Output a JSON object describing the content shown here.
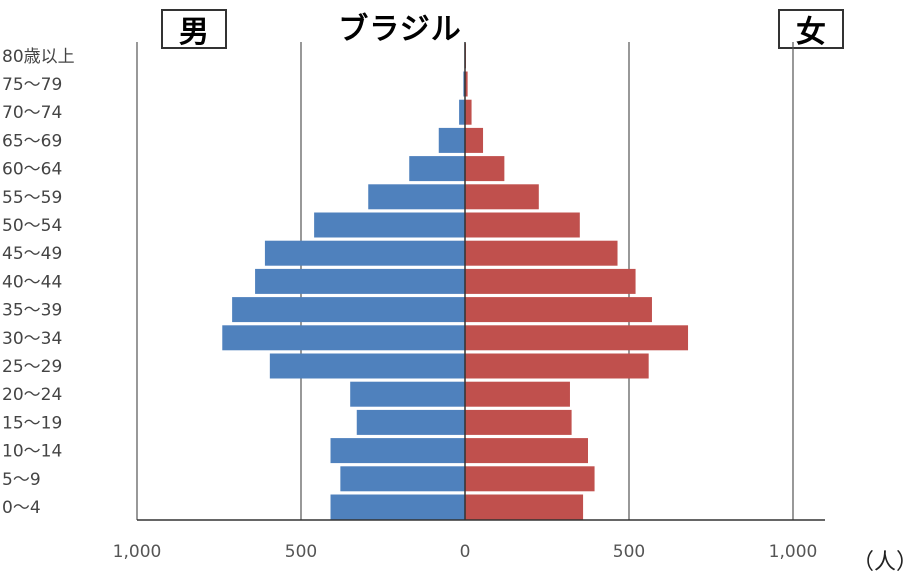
{
  "chart_data": {
    "type": "bar",
    "title": "ブラジル",
    "left_label": "男",
    "right_label": "女",
    "unit_label": "（人）",
    "categories": [
      "0～4",
      "5～9",
      "10～14",
      "15～19",
      "20～24",
      "25～29",
      "30～34",
      "35～39",
      "40～44",
      "45～49",
      "50～54",
      "55～59",
      "60～64",
      "65～69",
      "70～74",
      "75～79",
      "80歳以上"
    ],
    "series": [
      {
        "name": "男",
        "color": "#4f81bd",
        "values": [
          410,
          380,
          410,
          330,
          350,
          595,
          740,
          710,
          640,
          610,
          460,
          295,
          170,
          80,
          18,
          5,
          2
        ]
      },
      {
        "name": "女",
        "color": "#c0504d",
        "values": [
          360,
          395,
          375,
          325,
          320,
          560,
          680,
          570,
          520,
          465,
          350,
          225,
          120,
          55,
          20,
          8,
          3
        ]
      }
    ],
    "x_ticks": [
      {
        "value": -1000,
        "label": "1,000"
      },
      {
        "value": -500,
        "label": "500"
      },
      {
        "value": 0,
        "label": "0"
      },
      {
        "value": 500,
        "label": "500"
      },
      {
        "value": 1000,
        "label": "1,000"
      }
    ],
    "xlim": [
      -1000,
      1000
    ],
    "grid": true
  }
}
